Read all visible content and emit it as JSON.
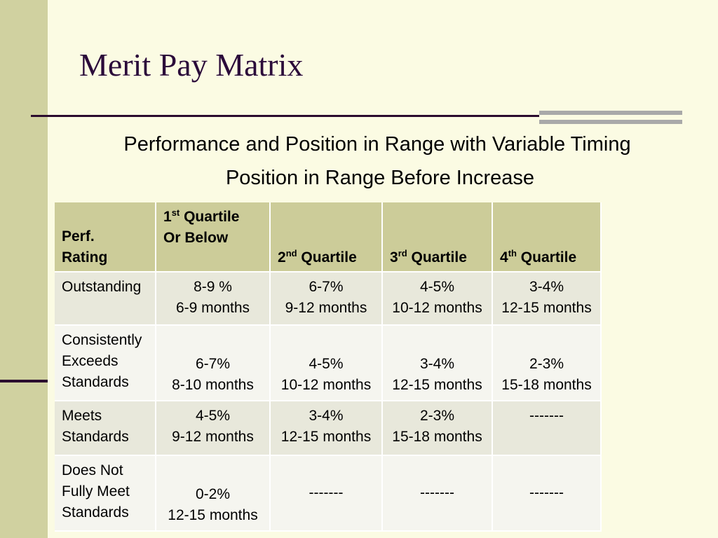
{
  "title": "Merit Pay Matrix",
  "subtitle1": "Performance and Position in Range with Variable Timing",
  "subtitle2": "Position in Range Before Increase",
  "header": {
    "rating_line1": "Perf.",
    "rating_line2": "Rating",
    "q1_num": "1",
    "q1_sup": "st",
    "q1_rest": " Quartile",
    "q1_line2": "Or Below",
    "q2_num": "2",
    "q2_sup": "nd",
    "q2_rest": " Quartile",
    "q3_num": "3",
    "q3_sup": "rd",
    "q3_rest": " Quartile",
    "q4_num": "4",
    "q4_sup": "th",
    "q4_rest": " Quartile"
  },
  "rows": [
    {
      "rating": [
        "Outstanding"
      ],
      "cells": [
        [
          "8-9 %",
          "6-9 months"
        ],
        [
          "6-7%",
          "9-12 months"
        ],
        [
          "4-5%",
          "10-12 months"
        ],
        [
          "3-4%",
          "12-15 months"
        ]
      ]
    },
    {
      "rating": [
        "Consistently",
        "Exceeds",
        "Standards"
      ],
      "cells": [
        [
          "6-7%",
          "8-10 months"
        ],
        [
          "4-5%",
          "10-12 months"
        ],
        [
          "3-4%",
          "12-15 months"
        ],
        [
          "2-3%",
          "15-18 months"
        ]
      ]
    },
    {
      "rating": [
        "Meets",
        "Standards"
      ],
      "cells": [
        [
          "4-5%",
          "9-12 months"
        ],
        [
          "3-4%",
          "12-15 months"
        ],
        [
          "2-3%",
          "15-18 months"
        ],
        [
          "-------"
        ]
      ]
    },
    {
      "rating": [
        "Does Not",
        "Fully Meet",
        "Standards"
      ],
      "cells": [
        [
          "0-2%",
          "12-15 months"
        ],
        [
          "-------"
        ],
        [
          "-------"
        ],
        [
          "-------"
        ]
      ]
    }
  ]
}
